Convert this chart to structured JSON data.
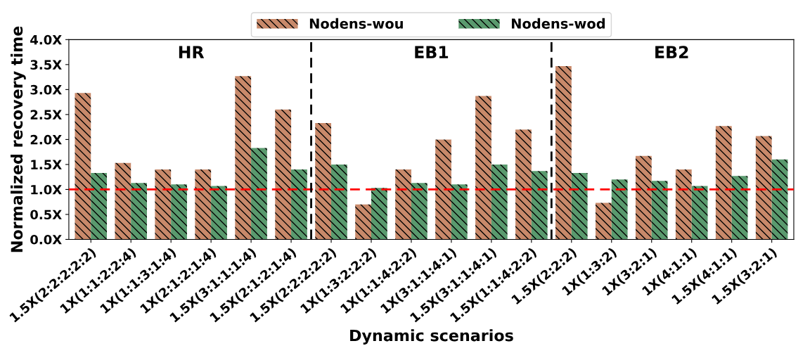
{
  "chart_data": {
    "type": "bar",
    "xlabel": "Dynamic scenarios",
    "ylabel": "Normalized recovery time",
    "categories": [
      "1.5X(2:2:2:2:2)",
      "1X(1:1:2:2:4)",
      "1X(1:1:3:1:4)",
      "1X(2:1:2:1:4)",
      "1.5X(3:1:1:1:4)",
      "1.5X(2:1:2:1:4)",
      "1.5X(2:2:2:2:2)",
      "1X(1:3:2:2:2)",
      "1X(1:1:4:2:2)",
      "1X(3:1:1:4:1)",
      "1.5X(3:1:1:4:1)",
      "1.5X(1:1:4:2:2)",
      "1.5X(2:2:2)",
      "1X(1:3:2)",
      "1X(3:2:1)",
      "1X(4:1:1)",
      "1.5X(4:1:1)",
      "1.5X(3:2:1)"
    ],
    "series": [
      {
        "name": "Nodens-wou",
        "color": "#c8896a",
        "values": [
          2.93,
          1.53,
          1.4,
          1.4,
          3.27,
          2.6,
          2.33,
          0.7,
          1.4,
          2.0,
          2.87,
          2.2,
          3.47,
          0.73,
          1.67,
          1.4,
          2.27,
          2.07
        ]
      },
      {
        "name": "Nodens-wod",
        "color": "#5a9a6e",
        "values": [
          1.33,
          1.13,
          1.1,
          1.07,
          1.83,
          1.4,
          1.5,
          1.03,
          1.13,
          1.1,
          1.5,
          1.37,
          1.33,
          1.2,
          1.17,
          1.07,
          1.27,
          1.6
        ]
      }
    ],
    "ylim": [
      0,
      4.0
    ],
    "yticks": [
      {
        "value": 0,
        "label": "0.0X"
      },
      {
        "value": 0.5,
        "label": "0.5X"
      },
      {
        "value": 1.0,
        "label": "1.0X"
      },
      {
        "value": 1.5,
        "label": "1.5X"
      },
      {
        "value": 2.0,
        "label": "2.0X"
      },
      {
        "value": 2.5,
        "label": "2.5X"
      },
      {
        "value": 3.0,
        "label": "3.0X"
      },
      {
        "value": 3.5,
        "label": "3.5X"
      },
      {
        "value": 4.0,
        "label": "4.0X"
      }
    ],
    "ref_lines": [
      {
        "axis": "y",
        "value": 1.0,
        "color": "#ff0000",
        "line_style": "dashed"
      }
    ],
    "annotations": [
      "HR",
      "EB1",
      "EB2"
    ],
    "legend": "top",
    "grid": false
  }
}
